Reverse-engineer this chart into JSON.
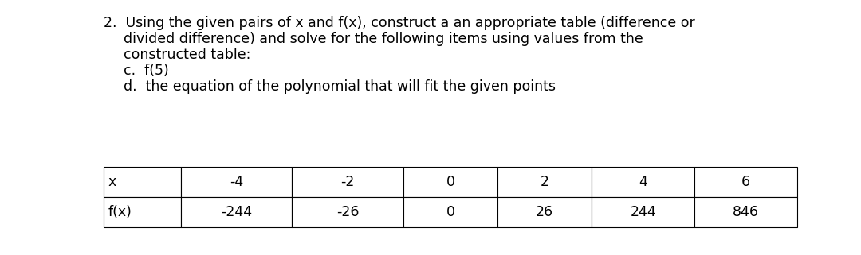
{
  "background_color": "#ffffff",
  "text_color": "#000000",
  "title_number": "2.",
  "title_line1": "Using the given pairs of x and f(x), construct a an appropriate table (difference or",
  "title_line2": "divided difference) and solve for the following items using values from the",
  "title_line3": "constructed table:",
  "item_c": "c.  f(5)",
  "item_d": "d.  the equation of the polynomial that will fit the given points",
  "table_headers": [
    "x",
    "-4",
    "-2",
    "0",
    "2",
    "4",
    "6"
  ],
  "table_row2": [
    "f(x)",
    "-244",
    "-26",
    "0",
    "26",
    "244",
    "846"
  ],
  "font_family": "DejaVu Sans",
  "text_fontsize": 12.5,
  "table_fontsize": 12.5,
  "fig_width": 10.8,
  "fig_height": 3.21,
  "dpi": 100
}
